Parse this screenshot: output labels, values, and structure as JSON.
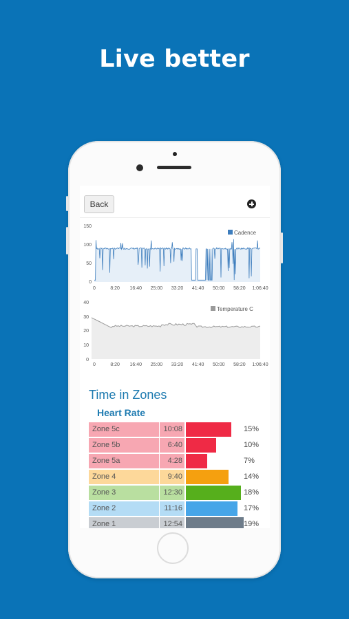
{
  "headline": "Live better",
  "toolbar": {
    "back_label": "Back",
    "add_icon": "plus-circle-icon"
  },
  "cadence_chart": {
    "legend": "Cadence",
    "color": "#3d7dbd",
    "fill": "#e6eff8",
    "y_ticks": [
      "150",
      "100",
      "50",
      "0"
    ],
    "x_ticks": [
      "0",
      "8:20",
      "16:40",
      "25:00",
      "33:20",
      "41:40",
      "50:00",
      "58:20",
      "1:06:40"
    ]
  },
  "temperature_chart": {
    "legend": "Temperature C",
    "color": "#9a9a9a",
    "fill": "#ededed",
    "y_ticks": [
      "40",
      "30",
      "20",
      "10",
      "0"
    ],
    "x_ticks": [
      "0",
      "8:20",
      "16:40",
      "25:00",
      "33:20",
      "41:40",
      "50:00",
      "58:20",
      "1:06:40"
    ]
  },
  "zones_section": {
    "title": "Time in Zones",
    "subtitle": "Heart Rate",
    "rows": [
      {
        "name": "Zone 5c",
        "time": "10:08",
        "percent": "15%",
        "fraction": 0.15,
        "bg": "#f7a7b2",
        "bar": "#ef2a45"
      },
      {
        "name": "Zone 5b",
        "time": "6:40",
        "percent": "10%",
        "fraction": 0.1,
        "bg": "#f7a7b2",
        "bar": "#ef2a45"
      },
      {
        "name": "Zone 5a",
        "time": "4:28",
        "percent": "7%",
        "fraction": 0.07,
        "bg": "#f7a7b2",
        "bar": "#ef2a45"
      },
      {
        "name": "Zone 4",
        "time": "9:40",
        "percent": "14%",
        "fraction": 0.14,
        "bg": "#fdd89a",
        "bar": "#f5a00f"
      },
      {
        "name": "Zone 3",
        "time": "12:30",
        "percent": "18%",
        "fraction": 0.18,
        "bg": "#b9dfa0",
        "bar": "#56af1c"
      },
      {
        "name": "Zone 2",
        "time": "11:16",
        "percent": "17%",
        "fraction": 0.17,
        "bg": "#b4dcf5",
        "bar": "#46a5e8"
      },
      {
        "name": "Zone 1",
        "time": "12:54",
        "percent": "19%",
        "fraction": 0.19,
        "bg": "#c9cdd2",
        "bar": "#6e7c8a"
      }
    ]
  }
}
